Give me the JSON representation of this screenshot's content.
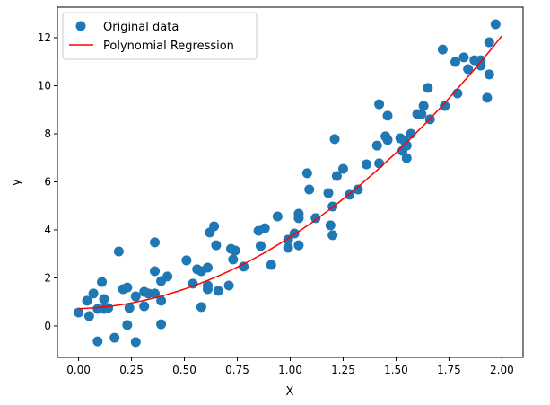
{
  "chart_data": {
    "type": "scatter",
    "title": "",
    "xlabel": "X",
    "ylabel": "y",
    "xlim": [
      -0.1,
      2.1
    ],
    "ylim": [
      -1.31,
      13.27
    ],
    "xticks": [
      0.0,
      0.25,
      0.5,
      0.75,
      1.0,
      1.25,
      1.5,
      1.75,
      2.0
    ],
    "xtick_labels": [
      "0.00",
      "0.25",
      "0.50",
      "0.75",
      "1.00",
      "1.25",
      "1.50",
      "1.75",
      "2.00"
    ],
    "yticks": [
      0,
      2,
      4,
      6,
      8,
      10,
      12
    ],
    "ytick_labels": [
      "0",
      "2",
      "4",
      "6",
      "8",
      "10",
      "12"
    ],
    "grid": false,
    "legend_position": "top-left",
    "series": [
      {
        "name": "Original data",
        "kind": "scatter",
        "color": "#1f77b4",
        "points": [
          [
            0.0,
            0.56
          ],
          [
            0.04,
            1.05
          ],
          [
            0.05,
            0.41
          ],
          [
            0.07,
            1.35
          ],
          [
            0.09,
            -0.64
          ],
          [
            0.09,
            0.71
          ],
          [
            0.11,
            1.83
          ],
          [
            0.12,
            0.71
          ],
          [
            0.12,
            1.12
          ],
          [
            0.14,
            0.75
          ],
          [
            0.17,
            -0.49
          ],
          [
            0.19,
            3.1
          ],
          [
            0.21,
            1.53
          ],
          [
            0.23,
            1.6
          ],
          [
            0.23,
            0.04
          ],
          [
            0.24,
            0.75
          ],
          [
            0.27,
            -0.67
          ],
          [
            0.27,
            1.23
          ],
          [
            0.31,
            1.42
          ],
          [
            0.31,
            0.82
          ],
          [
            0.33,
            1.35
          ],
          [
            0.36,
            2.28
          ],
          [
            0.36,
            3.48
          ],
          [
            0.36,
            1.35
          ],
          [
            0.39,
            1.87
          ],
          [
            0.39,
            0.07
          ],
          [
            0.39,
            1.05
          ],
          [
            0.42,
            2.06
          ],
          [
            0.51,
            2.73
          ],
          [
            0.54,
            1.76
          ],
          [
            0.56,
            2.36
          ],
          [
            0.58,
            2.28
          ],
          [
            0.58,
            0.79
          ],
          [
            0.61,
            2.43
          ],
          [
            0.61,
            1.68
          ],
          [
            0.61,
            1.53
          ],
          [
            0.62,
            3.89
          ],
          [
            0.64,
            4.15
          ],
          [
            0.65,
            3.36
          ],
          [
            0.66,
            1.46
          ],
          [
            0.71,
            1.68
          ],
          [
            0.72,
            3.21
          ],
          [
            0.73,
            2.77
          ],
          [
            0.74,
            3.14
          ],
          [
            0.78,
            2.47
          ],
          [
            0.85,
            3.96
          ],
          [
            0.86,
            3.33
          ],
          [
            0.88,
            4.07
          ],
          [
            0.91,
            2.54
          ],
          [
            0.94,
            4.56
          ],
          [
            0.99,
            3.59
          ],
          [
            0.99,
            3.25
          ],
          [
            1.02,
            3.85
          ],
          [
            1.04,
            4.67
          ],
          [
            1.04,
            4.49
          ],
          [
            1.04,
            3.36
          ],
          [
            1.08,
            6.36
          ],
          [
            1.09,
            5.68
          ],
          [
            1.12,
            4.49
          ],
          [
            1.18,
            5.53
          ],
          [
            1.19,
            4.19
          ],
          [
            1.2,
            3.78
          ],
          [
            1.2,
            4.97
          ],
          [
            1.21,
            7.78
          ],
          [
            1.22,
            6.24
          ],
          [
            1.25,
            6.54
          ],
          [
            1.28,
            5.46
          ],
          [
            1.32,
            5.68
          ],
          [
            1.36,
            6.73
          ],
          [
            1.42,
            6.77
          ],
          [
            1.41,
            7.51
          ],
          [
            1.42,
            9.23
          ],
          [
            1.46,
            8.75
          ],
          [
            1.45,
            7.89
          ],
          [
            1.46,
            7.74
          ],
          [
            1.52,
            7.81
          ],
          [
            1.53,
            7.29
          ],
          [
            1.55,
            6.99
          ],
          [
            1.54,
            7.7
          ],
          [
            1.55,
            7.51
          ],
          [
            1.57,
            8.0
          ],
          [
            1.6,
            8.82
          ],
          [
            1.62,
            8.82
          ],
          [
            1.63,
            9.16
          ],
          [
            1.66,
            8.6
          ],
          [
            1.65,
            9.91
          ],
          [
            1.72,
            11.51
          ],
          [
            1.73,
            9.16
          ],
          [
            1.78,
            10.99
          ],
          [
            1.79,
            9.68
          ],
          [
            1.82,
            11.18
          ],
          [
            1.84,
            10.69
          ],
          [
            1.87,
            11.06
          ],
          [
            1.9,
            11.06
          ],
          [
            1.9,
            10.84
          ],
          [
            1.93,
            9.5
          ],
          [
            1.94,
            10.47
          ],
          [
            1.94,
            11.81
          ],
          [
            1.97,
            12.56
          ]
        ]
      },
      {
        "name": "Polynomial Regression",
        "kind": "line",
        "color": "#ff0000",
        "coefficients": [
          0.72,
          0.28,
          2.7
        ],
        "x_range": [
          0.0,
          2.0
        ]
      }
    ]
  }
}
